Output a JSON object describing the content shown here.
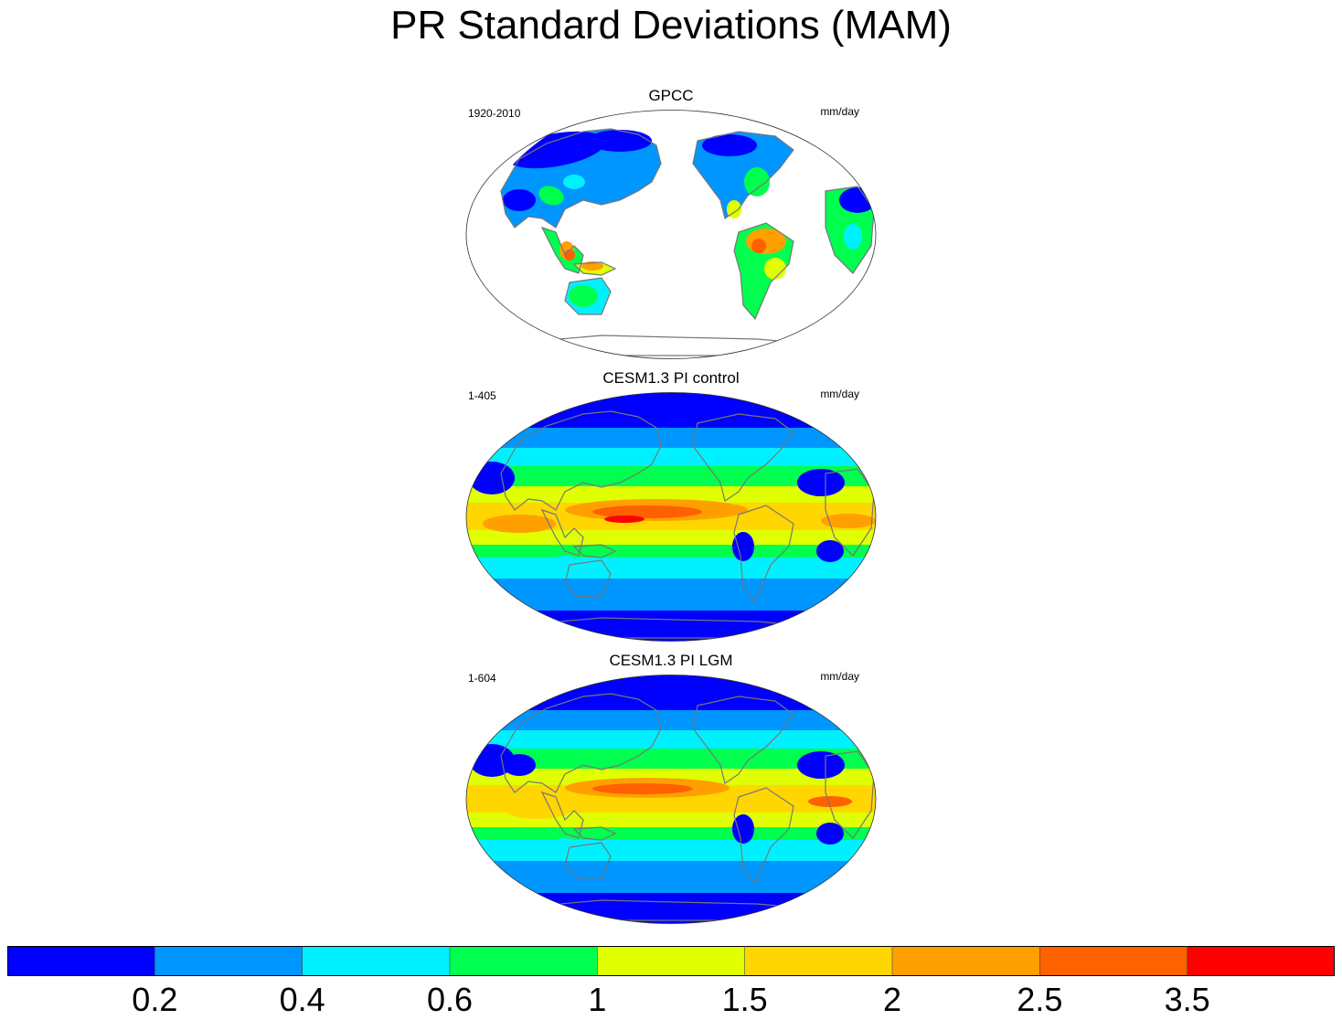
{
  "title": "PR Standard Deviations (MAM)",
  "panels": [
    {
      "name": "GPCC",
      "left": "1920-2010",
      "right": "mm/day",
      "kind": "obs"
    },
    {
      "name": "CESM1.3 PI control",
      "left": "1-405",
      "right": "mm/day",
      "kind": "model"
    },
    {
      "name": "CESM1.3 PI LGM",
      "left": "1-604",
      "right": "mm/day",
      "kind": "model"
    }
  ],
  "colorbar": {
    "colors": [
      "#0000ff",
      "#0096ff",
      "#00f0ff",
      "#00ff4e",
      "#e0ff00",
      "#ffd600",
      "#ffa000",
      "#ff6000",
      "#ff0000"
    ],
    "labels": [
      "0.2",
      "0.4",
      "0.6",
      "1",
      "1.5",
      "2",
      "2.5",
      "3.5"
    ]
  }
}
